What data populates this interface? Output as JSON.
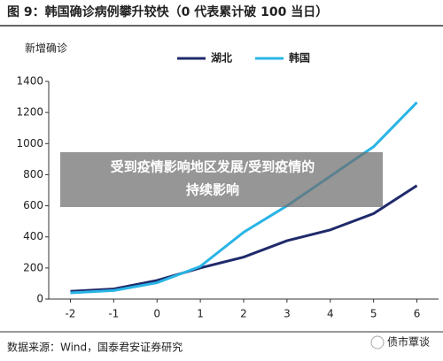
{
  "chart_data": {
    "type": "line",
    "title": "图 9：韩国确诊病例攀升较快（0 代表累计破 100 当日）",
    "y_label": "新增确诊",
    "source": "数据来源：Wind，国泰君安证券研究",
    "x": [
      -2,
      -1,
      0,
      1,
      2,
      3,
      4,
      5,
      6
    ],
    "xlim": [
      -2.5,
      6.5
    ],
    "xticks": [
      -2,
      -1,
      0,
      1,
      2,
      3,
      4,
      5,
      6
    ],
    "ylim": [
      0,
      1400
    ],
    "yticks": [
      0,
      200,
      400,
      600,
      800,
      1000,
      1200,
      1400
    ],
    "grid": false,
    "legend": "top",
    "series": [
      {
        "name": "湖北",
        "color": "#1f2a6b",
        "values": [
          50,
          65,
          120,
          200,
          270,
          375,
          445,
          550,
          730
        ]
      },
      {
        "name": "韩国",
        "color": "#29b4e6",
        "values": [
          40,
          55,
          105,
          210,
          430,
          600,
          790,
          980,
          1265
        ]
      }
    ]
  },
  "overlay": {
    "lines": [
      "受到疫情影响地区发展/受到疫情的",
      "持续影响"
    ],
    "watermark": "债市覃谈"
  }
}
